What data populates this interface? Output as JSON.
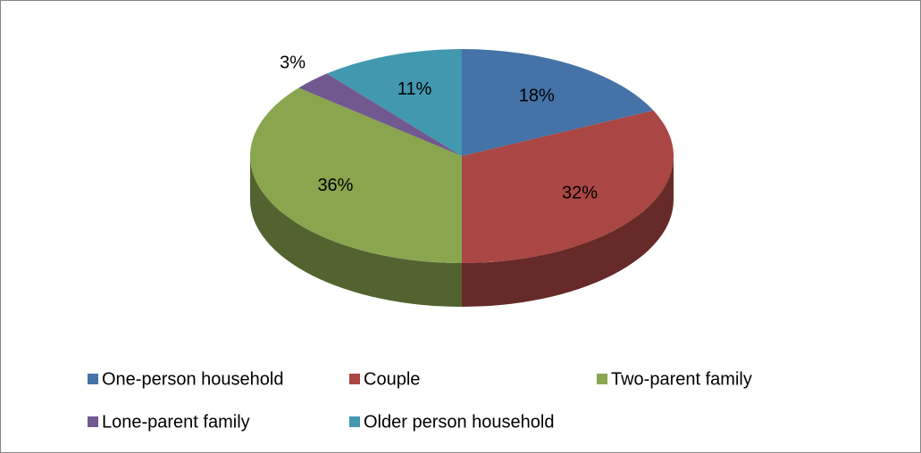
{
  "chart_data": {
    "type": "pie",
    "categories": [
      "One-person household",
      "Couple",
      "Two-parent family",
      "Lone-parent family",
      "Older person household"
    ],
    "values": [
      18,
      32,
      36,
      3,
      11
    ],
    "value_labels": [
      "18%",
      "32%",
      "36%",
      "3%",
      "11%"
    ],
    "colors": [
      "#4572a7",
      "#aa4643",
      "#89a54e",
      "#71588f",
      "#4198af"
    ],
    "legend": "bottom"
  }
}
